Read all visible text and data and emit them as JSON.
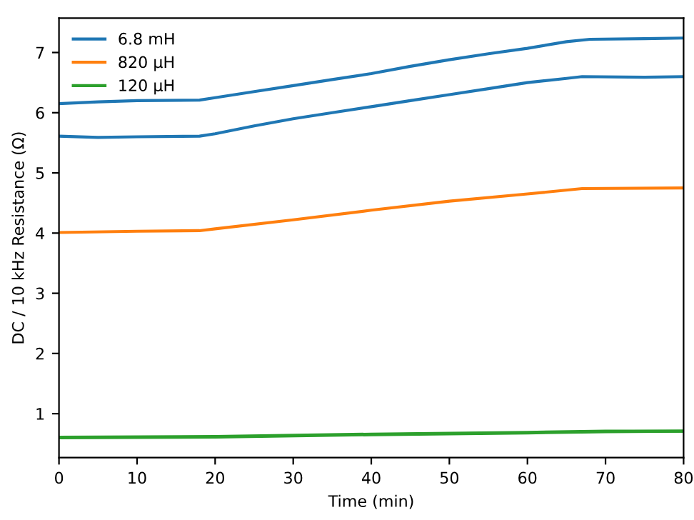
{
  "chart_data": {
    "type": "line",
    "xlabel": "Time (min)",
    "ylabel": "DC / 10 kHz Resistance (Ω)",
    "xlim": [
      0,
      80
    ],
    "xticks": [
      0,
      10,
      20,
      30,
      40,
      50,
      60,
      70,
      80
    ],
    "ylim": [
      0.27,
      7.57
    ],
    "yticks": [
      1,
      2,
      3,
      4,
      5,
      6,
      7
    ],
    "legend": "top left",
    "grid": false,
    "marker": "none",
    "line_style": "solid",
    "series": [
      {
        "name": "6.8 mH",
        "color": "#1f77b4",
        "x": [
          0,
          5,
          10,
          18,
          20,
          25,
          30,
          35,
          40,
          45,
          50,
          55,
          60,
          65,
          68,
          75,
          80
        ],
        "values": [
          6.15,
          6.18,
          6.2,
          6.21,
          6.25,
          6.35,
          6.45,
          6.55,
          6.65,
          6.77,
          6.88,
          6.98,
          7.07,
          7.18,
          7.22,
          7.23,
          7.24
        ]
      },
      {
        "color": "#1f77b4",
        "x": [
          0,
          5,
          10,
          18,
          20,
          25,
          30,
          35,
          40,
          45,
          50,
          55,
          60,
          65,
          67,
          75,
          80
        ],
        "values": [
          5.61,
          5.59,
          5.6,
          5.61,
          5.65,
          5.78,
          5.9,
          6.0,
          6.1,
          6.2,
          6.3,
          6.4,
          6.5,
          6.57,
          6.6,
          6.59,
          6.6
        ]
      },
      {
        "name": "820 µH",
        "color": "#ff7f0e",
        "x": [
          0,
          10,
          18,
          20,
          30,
          40,
          50,
          60,
          67,
          80
        ],
        "values": [
          4.01,
          4.03,
          4.04,
          4.07,
          4.22,
          4.38,
          4.53,
          4.65,
          4.74,
          4.75
        ]
      },
      {
        "name": "120 µH",
        "color": "#2ca02c",
        "x": [
          0,
          20,
          40,
          60,
          70,
          80
        ],
        "values": [
          0.61,
          0.62,
          0.66,
          0.69,
          0.71,
          0.71
        ]
      },
      {
        "color": "#2ca02c",
        "x": [
          0,
          20,
          40,
          60,
          70,
          80
        ],
        "values": [
          0.6,
          0.61,
          0.65,
          0.68,
          0.7,
          0.71
        ]
      }
    ]
  }
}
